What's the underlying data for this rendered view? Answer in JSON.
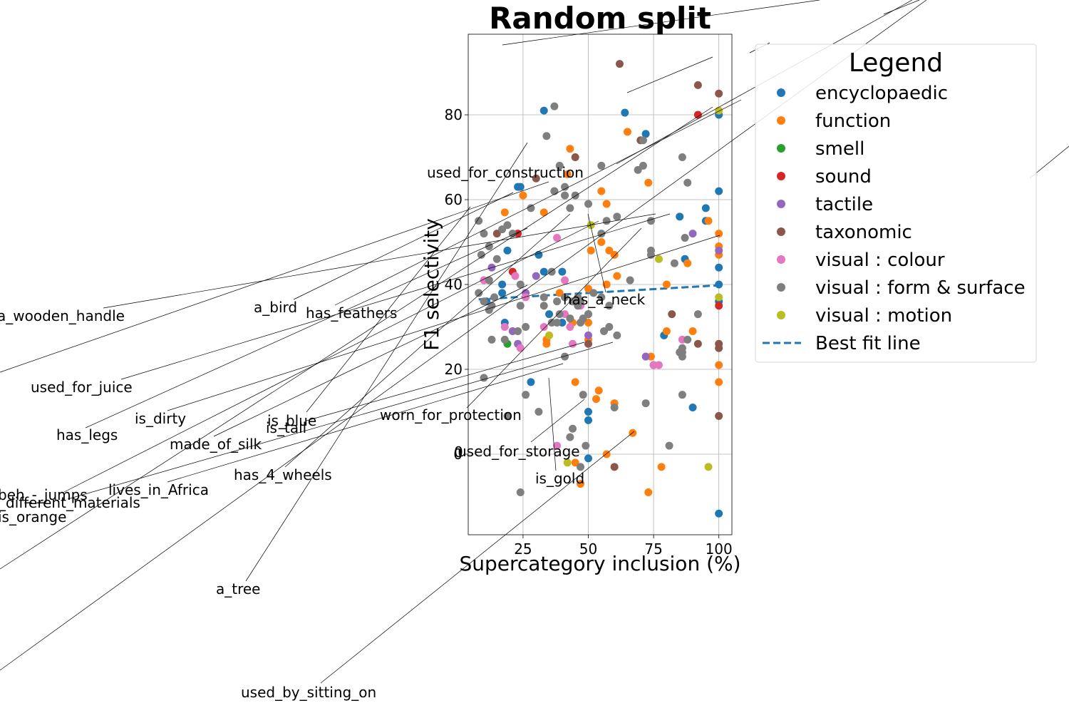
{
  "chart_data": {
    "type": "scatter",
    "title": "Random split",
    "xlabel": "Supercategory inclusion (%)",
    "ylabel": "F1 selectivity",
    "xlim": [
      4,
      105
    ],
    "ylim": [
      -19,
      99
    ],
    "xticks": [
      25,
      50,
      75,
      100
    ],
    "yticks": [
      0,
      20,
      40,
      60,
      80
    ],
    "grid": true,
    "legend": {
      "title": "Legend",
      "placement": "outside-right",
      "entries": [
        {
          "label": "encyclopaedic",
          "color": "#1f77b4",
          "marker": "dot"
        },
        {
          "label": "function",
          "color": "#ff7f0e",
          "marker": "dot"
        },
        {
          "label": "smell",
          "color": "#2ca02c",
          "marker": "dot"
        },
        {
          "label": "sound",
          "color": "#d62728",
          "marker": "dot"
        },
        {
          "label": "tactile",
          "color": "#9467bd",
          "marker": "dot"
        },
        {
          "label": "taxonomic",
          "color": "#8c564b",
          "marker": "dot"
        },
        {
          "label": "visual : colour",
          "color": "#e377c2",
          "marker": "dot"
        },
        {
          "label": "visual : form & surface",
          "color": "#7f7f7f",
          "marker": "dot"
        },
        {
          "label": "visual : motion",
          "color": "#bcbd22",
          "marker": "dot"
        },
        {
          "label": "Best fit line",
          "color": "#1f77b4",
          "marker": "dashed-line"
        }
      ]
    },
    "best_fit": {
      "x": [
        8,
        100
      ],
      "y": [
        36.5,
        39.8
      ]
    },
    "series": [
      {
        "name": "encyclopaedic",
        "color": "#1f77b4",
        "points": [
          [
            23,
            63
          ],
          [
            24,
            63
          ],
          [
            33,
            81
          ],
          [
            64,
            80.5
          ],
          [
            72,
            75.5
          ],
          [
            19,
            48
          ],
          [
            31,
            47
          ],
          [
            40,
            43
          ],
          [
            33,
            43
          ],
          [
            17,
            40
          ],
          [
            17,
            38
          ],
          [
            11,
            36
          ],
          [
            35,
            33
          ],
          [
            40,
            31
          ],
          [
            18,
            31
          ],
          [
            28,
            17
          ],
          [
            79,
            28
          ],
          [
            85,
            56
          ],
          [
            87,
            46
          ],
          [
            95,
            58
          ],
          [
            95,
            55
          ],
          [
            100,
            80
          ],
          [
            100,
            62
          ],
          [
            100,
            44
          ],
          [
            100,
            40
          ],
          [
            100,
            36
          ],
          [
            90,
            11
          ],
          [
            50,
            10
          ],
          [
            50,
            8
          ],
          [
            50,
            -1
          ],
          [
            100,
            -14
          ]
        ]
      },
      {
        "name": "function",
        "color": "#ff7f0e",
        "points": [
          [
            43,
            72
          ],
          [
            42,
            66
          ],
          [
            65,
            76
          ],
          [
            73,
            64
          ],
          [
            25,
            61
          ],
          [
            55,
            62
          ],
          [
            18,
            57
          ],
          [
            33,
            57
          ],
          [
            57,
            59
          ],
          [
            51,
            48
          ],
          [
            58,
            48
          ],
          [
            60,
            47
          ],
          [
            55,
            50
          ],
          [
            61,
            42
          ],
          [
            57,
            40
          ],
          [
            80,
            40
          ],
          [
            39,
            38
          ],
          [
            50,
            39
          ],
          [
            44,
            31
          ],
          [
            50,
            31
          ],
          [
            34,
            27
          ],
          [
            34,
            26
          ],
          [
            50,
            27
          ],
          [
            45,
            17
          ],
          [
            54,
            15
          ],
          [
            53,
            13
          ],
          [
            60,
            12
          ],
          [
            80,
            29
          ],
          [
            74,
            23
          ],
          [
            88,
            45
          ],
          [
            90,
            29
          ],
          [
            96,
            55
          ],
          [
            100,
            52
          ],
          [
            100,
            49
          ],
          [
            100,
            47
          ],
          [
            100,
            21
          ],
          [
            100,
            17
          ],
          [
            67,
            5
          ],
          [
            57,
            0
          ],
          [
            45,
            -2
          ],
          [
            47,
            -7
          ],
          [
            73,
            -9
          ],
          [
            78,
            -3
          ]
        ]
      },
      {
        "name": "smell",
        "color": "#2ca02c",
        "points": [
          [
            19,
            26
          ]
        ]
      },
      {
        "name": "sound",
        "color": "#d62728",
        "points": [
          [
            21,
            43
          ],
          [
            23,
            52
          ],
          [
            92,
            80
          ],
          [
            100,
            35
          ]
        ]
      },
      {
        "name": "tactile",
        "color": "#9467bd",
        "points": [
          [
            13,
            44
          ],
          [
            21,
            29
          ],
          [
            23,
            26
          ],
          [
            26,
            38
          ],
          [
            30,
            42
          ],
          [
            50,
            33
          ],
          [
            50,
            28
          ],
          [
            72,
            23
          ],
          [
            90,
            52
          ],
          [
            100,
            48
          ]
        ]
      },
      {
        "name": "taxonomic",
        "color": "#8c564b",
        "points": [
          [
            15,
            52
          ],
          [
            30,
            65
          ],
          [
            37,
            62
          ],
          [
            45,
            70
          ],
          [
            62,
            92
          ],
          [
            70,
            74
          ],
          [
            92,
            87
          ],
          [
            100,
            85
          ],
          [
            82,
            33
          ],
          [
            75,
            21
          ],
          [
            92,
            26
          ],
          [
            100,
            25
          ],
          [
            100,
            26
          ],
          [
            50,
            26
          ],
          [
            100,
            9
          ],
          [
            60,
            -3
          ]
        ]
      },
      {
        "name": "visual : colour",
        "color": "#e377c2",
        "points": [
          [
            10,
            41
          ],
          [
            22,
            42
          ],
          [
            38,
            51
          ],
          [
            41,
            41
          ],
          [
            41,
            33
          ],
          [
            43,
            30
          ],
          [
            44,
            26
          ],
          [
            47,
            35
          ],
          [
            24,
            25
          ],
          [
            33,
            30
          ],
          [
            18,
            30
          ],
          [
            26,
            37
          ],
          [
            75,
            21
          ],
          [
            77,
            21
          ],
          [
            86,
            27
          ],
          [
            38,
            2
          ]
        ]
      },
      {
        "name": "visual : form & surface",
        "color": "#7f7f7f",
        "points": [
          [
            37,
            82
          ],
          [
            34,
            75
          ],
          [
            39,
            68
          ],
          [
            41,
            63
          ],
          [
            41,
            61
          ],
          [
            45,
            61
          ],
          [
            37,
            62
          ],
          [
            43,
            58
          ],
          [
            28,
            58
          ],
          [
            50,
            59
          ],
          [
            55,
            68
          ],
          [
            57,
            55
          ],
          [
            55,
            52
          ],
          [
            61,
            56
          ],
          [
            69,
            67
          ],
          [
            71,
            74
          ],
          [
            71,
            68
          ],
          [
            74,
            55
          ],
          [
            86,
            70
          ],
          [
            88,
            64
          ],
          [
            87,
            51
          ],
          [
            92,
            33
          ],
          [
            83,
            45
          ],
          [
            88,
            27
          ],
          [
            86,
            24
          ],
          [
            86,
            25
          ],
          [
            8,
            55
          ],
          [
            10,
            52
          ],
          [
            12,
            49
          ],
          [
            17,
            53
          ],
          [
            19,
            54
          ],
          [
            21,
            52
          ],
          [
            9,
            47
          ],
          [
            15,
            46
          ],
          [
            12,
            41
          ],
          [
            8,
            38
          ],
          [
            14,
            37
          ],
          [
            10,
            36
          ],
          [
            13,
            35
          ],
          [
            12,
            34
          ],
          [
            24,
            40
          ],
          [
            24,
            35
          ],
          [
            33,
            37
          ],
          [
            33,
            35
          ],
          [
            36,
            43
          ],
          [
            38,
            36
          ],
          [
            41,
            37
          ],
          [
            46,
            37
          ],
          [
            47,
            36
          ],
          [
            52,
            38
          ],
          [
            55,
            37
          ],
          [
            58,
            35
          ],
          [
            26,
            30
          ],
          [
            38,
            31
          ],
          [
            39,
            33
          ],
          [
            43,
            32
          ],
          [
            46,
            35
          ],
          [
            47,
            31
          ],
          [
            50,
            33
          ],
          [
            56,
            29
          ],
          [
            61,
            28
          ],
          [
            66,
            41
          ],
          [
            74,
            47
          ],
          [
            74,
            48
          ],
          [
            85,
            24
          ],
          [
            86,
            23
          ],
          [
            10,
            18
          ],
          [
            13,
            27
          ],
          [
            18,
            27
          ],
          [
            23,
            29
          ],
          [
            26,
            14
          ],
          [
            31,
            10
          ],
          [
            41,
            23
          ],
          [
            48,
            14
          ],
          [
            49,
            2
          ],
          [
            44,
            6
          ],
          [
            43,
            4
          ],
          [
            60,
            11
          ],
          [
            72,
            12
          ],
          [
            86,
            14
          ],
          [
            81,
            2
          ],
          [
            36,
            31
          ],
          [
            19,
            9
          ],
          [
            24,
            -9
          ],
          [
            47,
            -3
          ],
          [
            58,
            30
          ],
          [
            48,
            32
          ],
          [
            44,
            36
          ]
        ]
      },
      {
        "name": "visual : motion",
        "color": "#bcbd22",
        "points": [
          [
            35,
            28
          ],
          [
            51,
            54
          ],
          [
            77,
            46
          ],
          [
            100,
            81
          ],
          [
            100,
            37
          ],
          [
            42,
            -2
          ],
          [
            96,
            -3
          ]
        ]
      }
    ],
    "annotations": [
      "a_wooden_handle",
      "a_bird",
      "has_feathers",
      "used_for_construction",
      "has_a_neck",
      "used_for_juice",
      "is_dirty",
      "has_legs",
      "is_blue",
      "is_tall",
      "made_of_silk",
      "worn_for_protection",
      "used_for_storage",
      "0",
      "is_gold",
      "has_4_wheels",
      "lives_in_Africa",
      "beh_-_jumps",
      "_different_materials",
      "is_orange",
      "a_tree",
      "used_by_sitting_on"
    ]
  }
}
